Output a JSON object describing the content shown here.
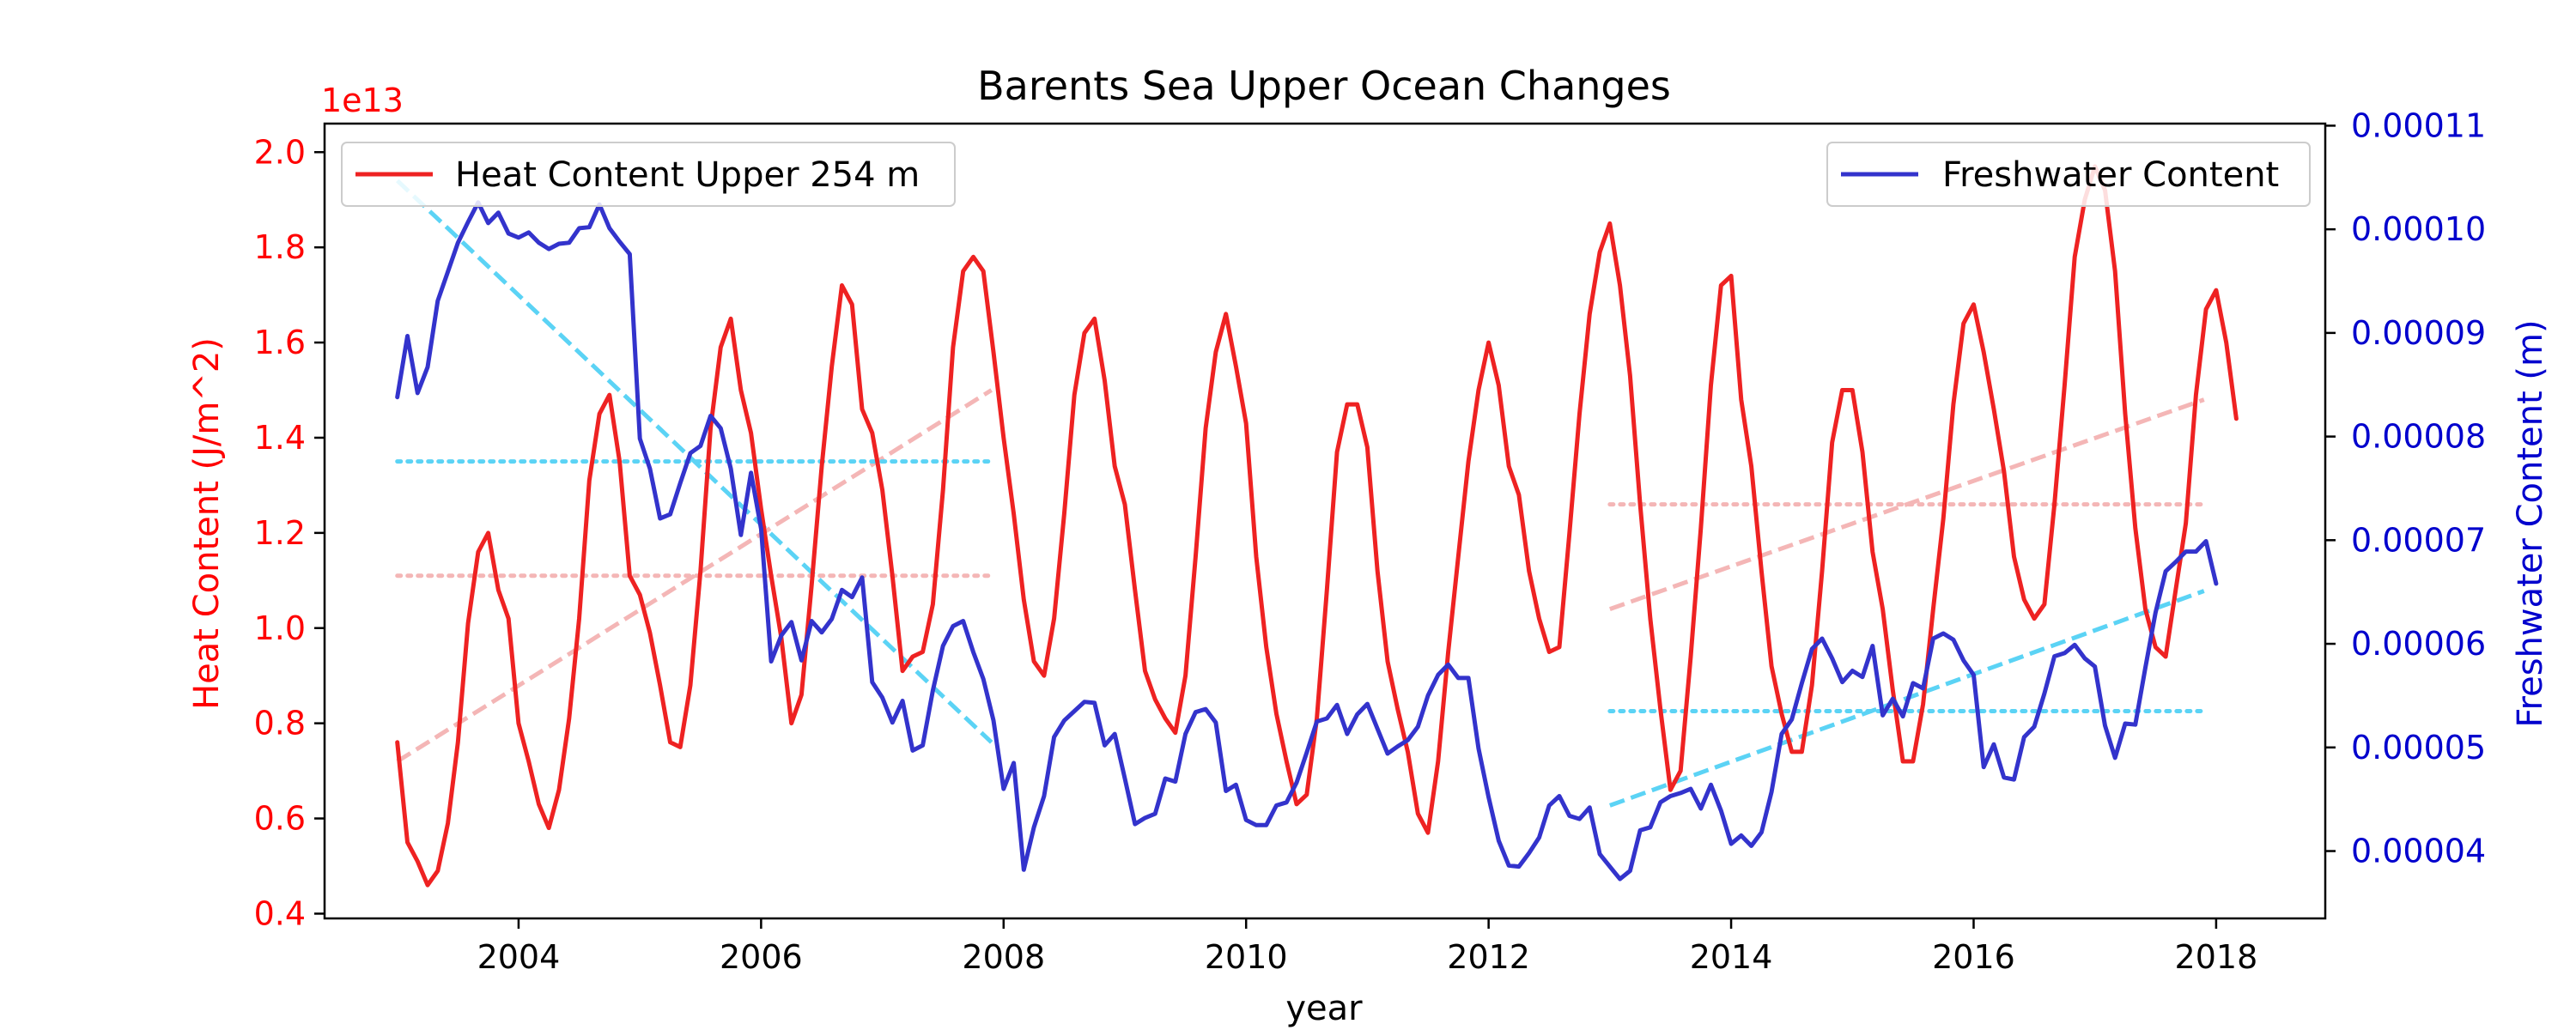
{
  "chart_data": {
    "type": "line",
    "title": "Barents Sea Upper Ocean Changes",
    "xlabel": "year",
    "xlim": [
      2002.4,
      2018.9
    ],
    "x_ticks": [
      "2004",
      "2006",
      "2008",
      "2010",
      "2012",
      "2014",
      "2016",
      "2018"
    ],
    "left_axis": {
      "label": "Heat Content (J/m^2)",
      "offset_text": "1e13",
      "color": "#ff0000",
      "ylim": [
        0.39,
        2.06
      ],
      "ticks": [
        "0.4",
        "0.6",
        "0.8",
        "1.0",
        "1.2",
        "1.4",
        "1.6",
        "1.8",
        "2.0"
      ]
    },
    "right_axis": {
      "label": "Freshwater Content (m)",
      "color": "#0000cd",
      "ylim": [
        3.35e-05,
        0.0001102
      ],
      "ticks": [
        "0.00004",
        "0.00005",
        "0.00006",
        "0.00007",
        "0.00008",
        "0.00009",
        "0.00010",
        "0.00011"
      ]
    },
    "grid": false,
    "series": [
      {
        "name": "Heat Content Upper 254 m",
        "axis": "left",
        "color": "#ee2222",
        "legend_location": "upper left",
        "x_start": 2003.0,
        "x_step": 0.083333,
        "values": [
          0.76,
          0.55,
          0.51,
          0.46,
          0.49,
          0.59,
          0.76,
          1.01,
          1.16,
          1.2,
          1.08,
          1.02,
          0.8,
          0.72,
          0.63,
          0.58,
          0.66,
          0.81,
          1.02,
          1.31,
          1.45,
          1.49,
          1.35,
          1.11,
          1.07,
          0.99,
          0.88,
          0.76,
          0.75,
          0.88,
          1.12,
          1.42,
          1.59,
          1.65,
          1.5,
          1.41,
          1.25,
          1.11,
          0.98,
          0.8,
          0.86,
          1.09,
          1.34,
          1.55,
          1.72,
          1.68,
          1.46,
          1.41,
          1.29,
          1.11,
          0.91,
          0.94,
          0.95,
          1.05,
          1.29,
          1.59,
          1.75,
          1.78,
          1.75,
          1.58,
          1.4,
          1.24,
          1.06,
          0.93,
          0.9,
          1.02,
          1.24,
          1.49,
          1.62,
          1.65,
          1.52,
          1.34,
          1.26,
          1.08,
          0.91,
          0.85,
          0.81,
          0.78,
          0.9,
          1.15,
          1.42,
          1.58,
          1.66,
          1.55,
          1.43,
          1.15,
          0.96,
          0.82,
          0.72,
          0.63,
          0.65,
          0.81,
          1.08,
          1.37,
          1.47,
          1.47,
          1.38,
          1.12,
          0.93,
          0.83,
          0.74,
          0.61,
          0.57,
          0.72,
          0.95,
          1.15,
          1.35,
          1.5,
          1.6,
          1.51,
          1.34,
          1.28,
          1.12,
          1.02,
          0.95,
          0.96,
          1.2,
          1.45,
          1.66,
          1.79,
          1.85,
          1.72,
          1.53,
          1.26,
          1.02,
          0.83,
          0.66,
          0.7,
          0.94,
          1.21,
          1.51,
          1.72,
          1.74,
          1.48,
          1.34,
          1.12,
          0.92,
          0.82,
          0.74,
          0.74,
          0.88,
          1.12,
          1.39,
          1.5,
          1.5,
          1.37,
          1.16,
          1.04,
          0.87,
          0.72,
          0.72,
          0.84,
          1.04,
          1.23,
          1.47,
          1.64,
          1.68,
          1.58,
          1.46,
          1.33,
          1.15,
          1.06,
          1.02,
          1.05,
          1.26,
          1.51,
          1.78,
          1.9,
          1.97,
          1.92,
          1.75,
          1.45,
          1.21,
          1.04,
          0.96,
          0.94,
          1.08,
          1.22,
          1.49,
          1.67,
          1.71,
          1.6,
          1.44
        ]
      },
      {
        "name": "Freshwater Content",
        "axis": "right",
        "color": "#3333cc",
        "legend_location": "upper right",
        "x_start": 2003.0,
        "x_step": 0.083333,
        "values": [
          8.38e-05,
          8.97e-05,
          8.42e-05,
          8.67e-05,
          9.31e-05,
          9.59e-05,
          9.87e-05,
          0.0001007,
          0.0001026,
          0.0001006,
          0.0001016,
          9.96e-05,
          9.92e-05,
          9.97e-05,
          9.87e-05,
          9.81e-05,
          9.86e-05,
          9.87e-05,
          0.0001001,
          0.0001002,
          0.0001024,
          0.0001001,
          9.88e-05,
          9.76e-05,
          7.98e-05,
          7.69e-05,
          7.21e-05,
          7.25e-05,
          7.55e-05,
          7.84e-05,
          7.91e-05,
          8.2e-05,
          8.08e-05,
          7.69e-05,
          7.05e-05,
          7.65e-05,
          7.11e-05,
          5.83e-05,
          6.08e-05,
          6.21e-05,
          5.84e-05,
          6.22e-05,
          6.11e-05,
          6.24e-05,
          6.52e-05,
          6.45e-05,
          6.64e-05,
          5.63e-05,
          5.48e-05,
          5.24e-05,
          5.45e-05,
          4.97e-05,
          5.02e-05,
          5.55e-05,
          5.98e-05,
          6.17e-05,
          6.22e-05,
          5.92e-05,
          5.66e-05,
          5.26e-05,
          4.6e-05,
          4.85e-05,
          3.82e-05,
          4.23e-05,
          4.53e-05,
          5.1e-05,
          5.26e-05,
          5.35e-05,
          5.44e-05,
          5.43e-05,
          5.02e-05,
          5.13e-05,
          4.7e-05,
          4.26e-05,
          4.32e-05,
          4.36e-05,
          4.7e-05,
          4.67e-05,
          5.13e-05,
          5.34e-05,
          5.37e-05,
          5.24e-05,
          4.58e-05,
          4.64e-05,
          4.3e-05,
          4.25e-05,
          4.25e-05,
          4.44e-05,
          4.47e-05,
          4.66e-05,
          4.95e-05,
          5.25e-05,
          5.28e-05,
          5.41e-05,
          5.13e-05,
          5.32e-05,
          5.42e-05,
          5.18e-05,
          4.94e-05,
          5.01e-05,
          5.07e-05,
          5.2e-05,
          5.5e-05,
          5.7e-05,
          5.8e-05,
          5.67e-05,
          5.67e-05,
          4.99e-05,
          4.52e-05,
          4.1e-05,
          3.86e-05,
          3.85e-05,
          3.98e-05,
          4.13e-05,
          4.44e-05,
          4.53e-05,
          4.34e-05,
          4.31e-05,
          4.42e-05,
          3.97e-05,
          3.85e-05,
          3.73e-05,
          3.81e-05,
          4.2e-05,
          4.23e-05,
          4.47e-05,
          4.53e-05,
          4.56e-05,
          4.6e-05,
          4.41e-05,
          4.64e-05,
          4.39e-05,
          4.07e-05,
          4.15e-05,
          4.05e-05,
          4.18e-05,
          4.57e-05,
          5.13e-05,
          5.27e-05,
          5.62e-05,
          5.95e-05,
          6.05e-05,
          5.86e-05,
          5.63e-05,
          5.74e-05,
          5.68e-05,
          5.98e-05,
          5.31e-05,
          5.47e-05,
          5.3e-05,
          5.62e-05,
          5.57e-05,
          6.05e-05,
          6.1e-05,
          6.04e-05,
          5.84e-05,
          5.7e-05,
          4.81e-05,
          5.03e-05,
          4.71e-05,
          4.69e-05,
          5.1e-05,
          5.2e-05,
          5.52e-05,
          5.88e-05,
          5.91e-05,
          5.99e-05,
          5.86e-05,
          5.78e-05,
          5.21e-05,
          4.9e-05,
          5.23e-05,
          5.22e-05,
          5.77e-05,
          6.3e-05,
          6.7e-05,
          6.79e-05,
          6.89e-05,
          6.89e-05,
          6.99e-05,
          6.58e-05
        ]
      }
    ],
    "trend_lines": [
      {
        "axis": "left",
        "style": "dashed",
        "color": "#f4b6b6",
        "x": [
          2003.0,
          2007.9
        ],
        "y": [
          0.72,
          1.5
        ]
      },
      {
        "axis": "left",
        "style": "dotted",
        "color": "#f4b6b6",
        "x": [
          2003.0,
          2007.9
        ],
        "y": [
          1.11,
          1.11
        ]
      },
      {
        "axis": "left",
        "style": "dashed",
        "color": "#f4b6b6",
        "x": [
          2013.0,
          2017.9
        ],
        "y": [
          1.04,
          1.48
        ]
      },
      {
        "axis": "left",
        "style": "dotted",
        "color": "#f4b6b6",
        "x": [
          2013.0,
          2017.9
        ],
        "y": [
          1.26,
          1.26
        ]
      },
      {
        "axis": "right",
        "style": "dashed",
        "color": "#5bd3f5",
        "x": [
          2003.0,
          2007.9
        ],
        "y": [
          0.0001047,
          5.05e-05
        ]
      },
      {
        "axis": "right",
        "style": "dotted",
        "color": "#5bd3f5",
        "x": [
          2003.0,
          2007.9
        ],
        "y": [
          7.76e-05,
          7.76e-05
        ]
      },
      {
        "axis": "right",
        "style": "dashed",
        "color": "#5bd3f5",
        "x": [
          2013.0,
          2017.9
        ],
        "y": [
          4.44e-05,
          6.51e-05
        ]
      },
      {
        "axis": "right",
        "style": "dotted",
        "color": "#5bd3f5",
        "x": [
          2013.0,
          2017.9
        ],
        "y": [
          5.35e-05,
          5.35e-05
        ]
      }
    ]
  }
}
